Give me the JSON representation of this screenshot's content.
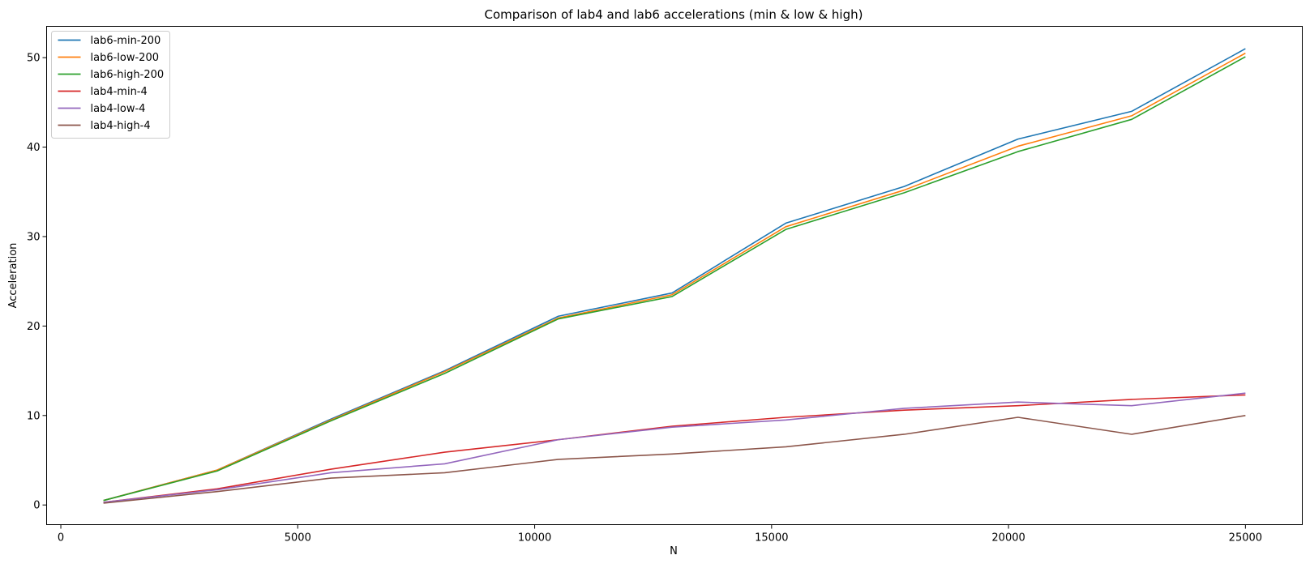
{
  "chart_data": {
    "type": "line",
    "title": "Comparison of lab4 and lab6 accelerations (min & low & high)",
    "xlabel": "N",
    "ylabel": "Acceleration",
    "xlim": [
      -300,
      26200
    ],
    "ylim": [
      -2.2,
      53.5
    ],
    "xticks": [
      0,
      5000,
      10000,
      15000,
      20000,
      25000
    ],
    "yticks": [
      0,
      10,
      20,
      30,
      40,
      50
    ],
    "grid": false,
    "legend_position": "top-left",
    "x": [
      900,
      3300,
      5700,
      8100,
      10500,
      12900,
      15300,
      17800,
      20200,
      22600,
      25000
    ],
    "series": [
      {
        "name": "lab6-min-200",
        "color": "#1f77b4",
        "values": [
          0.5,
          3.9,
          9.6,
          15.0,
          21.1,
          23.7,
          31.5,
          35.6,
          40.9,
          44.0,
          51.0
        ]
      },
      {
        "name": "lab6-low-200",
        "color": "#ff7f0e",
        "values": [
          0.5,
          3.9,
          9.5,
          14.9,
          20.9,
          23.5,
          31.1,
          35.2,
          40.1,
          43.5,
          50.5
        ]
      },
      {
        "name": "lab6-high-200",
        "color": "#2ca02c",
        "values": [
          0.5,
          3.8,
          9.4,
          14.7,
          20.8,
          23.3,
          30.8,
          34.9,
          39.5,
          43.1,
          50.1
        ]
      },
      {
        "name": "lab4-min-4",
        "color": "#d62728",
        "values": [
          0.3,
          1.8,
          4.0,
          5.9,
          7.3,
          8.8,
          9.8,
          10.6,
          11.1,
          11.8,
          12.3
        ]
      },
      {
        "name": "lab4-low-4",
        "color": "#9467bd",
        "values": [
          0.3,
          1.7,
          3.6,
          4.6,
          7.3,
          8.7,
          9.5,
          10.8,
          11.5,
          11.1,
          12.5
        ]
      },
      {
        "name": "lab4-high-4",
        "color": "#8c564b",
        "values": [
          0.2,
          1.5,
          3.0,
          3.6,
          5.1,
          5.7,
          6.5,
          7.9,
          9.8,
          7.9,
          10.0
        ]
      }
    ]
  }
}
